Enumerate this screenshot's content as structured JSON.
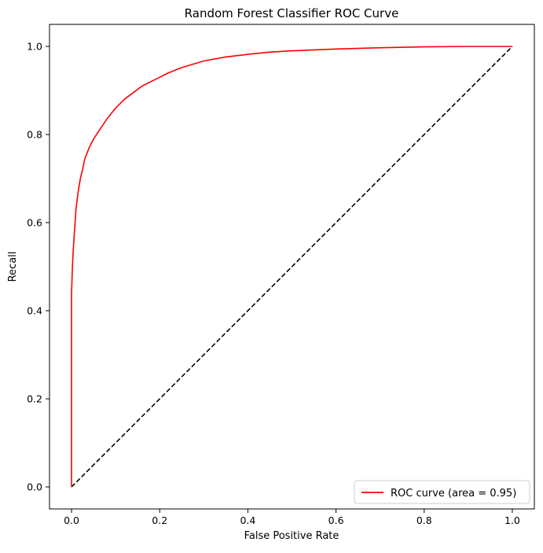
{
  "chart_data": {
    "type": "line",
    "title": "Random Forest Classifier ROC Curve",
    "xlabel": "False Positive Rate",
    "ylabel": "Recall",
    "xlim": [
      -0.05,
      1.05
    ],
    "ylim": [
      -0.05,
      1.05
    ],
    "xticks": [
      0.0,
      0.2,
      0.4,
      0.6,
      0.8,
      1.0
    ],
    "xtick_labels": [
      "0.0",
      "0.2",
      "0.4",
      "0.6",
      "0.8",
      "1.0"
    ],
    "yticks": [
      0.0,
      0.2,
      0.4,
      0.6,
      0.8,
      1.0
    ],
    "ytick_labels": [
      "0.0",
      "0.2",
      "0.4",
      "0.6",
      "0.8",
      "1.0"
    ],
    "grid": false,
    "legend_position": "lower right",
    "series": [
      {
        "name": "ROC curve (area = 0.95)",
        "color": "#ff0000",
        "style": "solid",
        "x": [
          0.0,
          0.0,
          0.002,
          0.004,
          0.006,
          0.008,
          0.01,
          0.015,
          0.02,
          0.025,
          0.03,
          0.04,
          0.05,
          0.06,
          0.08,
          0.1,
          0.12,
          0.14,
          0.16,
          0.18,
          0.2,
          0.22,
          0.25,
          0.3,
          0.35,
          0.4,
          0.45,
          0.5,
          0.6,
          0.7,
          0.8,
          0.9,
          1.0
        ],
        "y": [
          0.0,
          0.44,
          0.5,
          0.54,
          0.57,
          0.6,
          0.63,
          0.67,
          0.7,
          0.72,
          0.745,
          0.77,
          0.79,
          0.805,
          0.835,
          0.86,
          0.88,
          0.895,
          0.91,
          0.92,
          0.93,
          0.94,
          0.952,
          0.967,
          0.976,
          0.982,
          0.987,
          0.99,
          0.994,
          0.997,
          0.999,
          1.0,
          1.0
        ]
      },
      {
        "name": "",
        "color": "#000000",
        "style": "dashed",
        "x": [
          0.0,
          1.0
        ],
        "y": [
          0.0,
          1.0
        ]
      }
    ]
  }
}
